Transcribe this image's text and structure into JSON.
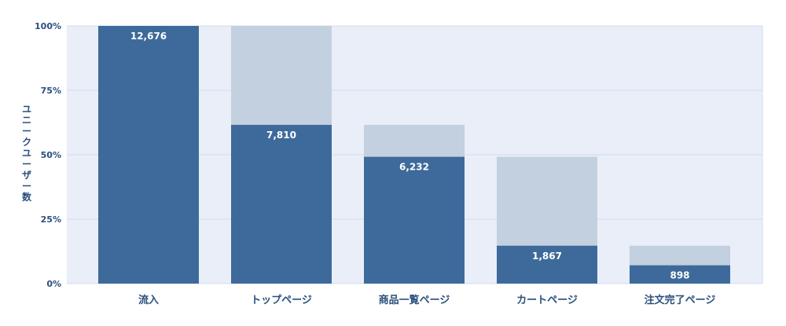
{
  "chart_data": {
    "type": "bar",
    "categories": [
      "流入",
      "トップページ",
      "商品一覧ページ",
      "カートページ",
      "注文完了ページ"
    ],
    "series": [
      {
        "values": [
          100,
          61.6,
          49.2,
          14.7,
          7.1
        ]
      },
      {
        "values": [
          100,
          100,
          61.6,
          49.2,
          14.7
        ]
      }
    ],
    "data_labels": [
      "12,676",
      "7,810",
      "6,232",
      "1,867",
      "898"
    ],
    "ylabel": "ユニークユーザー数",
    "y_ticks": [
      "0%",
      "25%",
      "50%",
      "75%",
      "100%"
    ],
    "ylim": [
      0,
      100
    ],
    "y_unit": "%",
    "grid": true,
    "colors": {
      "bar": "#3d6a9a",
      "previous_step": "#c3d0df",
      "plot_background": "#e9eef8",
      "grid": "#d3dcec",
      "text": "#2c4f7c"
    }
  }
}
